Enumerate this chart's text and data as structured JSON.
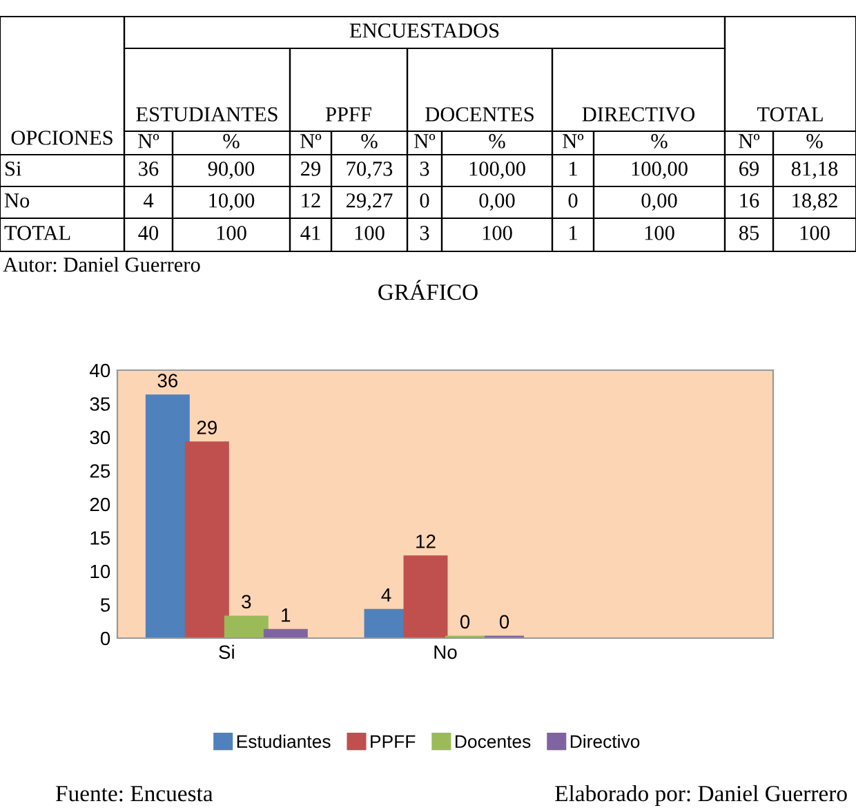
{
  "chart_data": [
    {
      "type": "other",
      "annotations": [
        "ENCUESTADOS",
        "ESTUDIANTES",
        "PPFF",
        "DOCENTES",
        "DIRECTIVO",
        "TOTAL",
        "OPCIONES",
        "Nº",
        "%",
        "Nº",
        "%",
        "Nº",
        "%",
        "Nº",
        "%",
        "Nº",
        "%",
        "Si",
        "36",
        "90,00",
        "29",
        "70,73",
        "3",
        "100,00",
        "1",
        "100,00",
        "69",
        "81,18",
        "No",
        "4",
        "10,00",
        "12",
        "29,27",
        "0",
        "0,00",
        "0",
        "0,00",
        "16",
        "18,82",
        "TOTAL",
        "40",
        "100",
        "41",
        "100",
        "3",
        "100",
        "1",
        "100",
        "85",
        "100",
        "Autor: Daniel Guerrero"
      ]
    },
    {
      "type": "bar",
      "title": "GRÁFICO",
      "categories": [
        "Si",
        "No",
        null
      ],
      "series": [
        {
          "name": "Estudiantes",
          "color": "#4f81bd",
          "values": [
            36,
            4,
            null
          ]
        },
        {
          "name": "PPFF",
          "color": "#c0504d",
          "values": [
            29,
            12,
            null
          ]
        },
        {
          "name": "Docentes",
          "color": "#9bbb59",
          "values": [
            3,
            0,
            null
          ]
        },
        {
          "name": "Directivo",
          "color": "#8064a2",
          "values": [
            1,
            0,
            null
          ]
        }
      ],
      "ylim": [
        0,
        40
      ],
      "yticks": [
        0,
        5,
        10,
        15,
        20,
        25,
        30,
        35,
        40
      ],
      "grid": false,
      "legend": "bottom",
      "data_labels": true,
      "annotations": [
        "Fuente: Encuesta",
        "Elaborado por: Daniel Guerrero"
      ]
    }
  ]
}
